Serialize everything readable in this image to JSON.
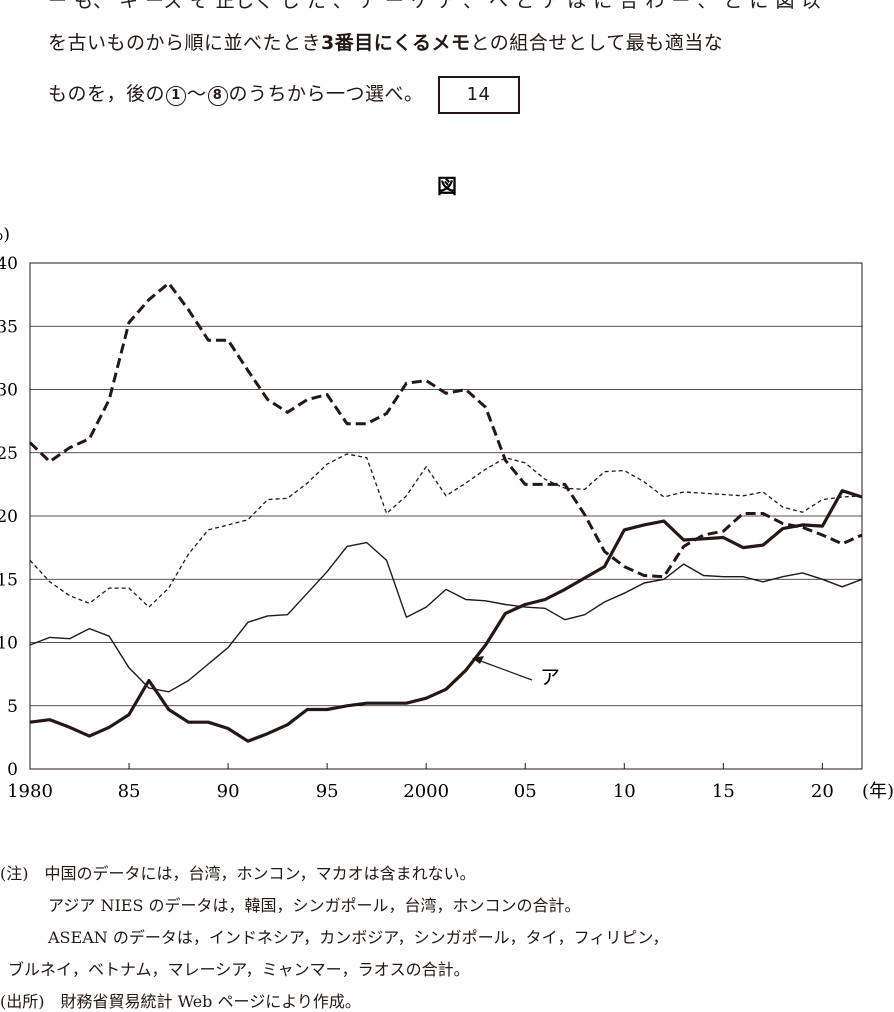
{
  "question": {
    "line0": "ー も、 キ ーズ そ 正しく し た 、 ア ー ケ ア 、 へ と ア は に 合 わ ー 、 と に 図 以",
    "line1_a": "を古いものから順に並べたとき",
    "line1_b": "3番目にくるメモ",
    "line1_c": "との組合せとして最も適当な",
    "line2_a": "ものを，後の",
    "choice_first": "1",
    "tilde": "～",
    "choice_last": "8",
    "line2_b": "のうちから一つ選べ。",
    "answer_no": "14"
  },
  "chart_data": {
    "type": "line",
    "title": "図",
    "ylabel": "(%)",
    "xlabel": "(年)",
    "ylim": [
      0,
      40
    ],
    "yticks": [
      0,
      5,
      10,
      15,
      20,
      25,
      30,
      35,
      40
    ],
    "ytick_labels": [
      "0",
      "5",
      "10",
      "15",
      "20",
      "25",
      "30",
      "35",
      "40"
    ],
    "xlim": [
      1980,
      2022
    ],
    "xticks": [
      1980,
      1985,
      1990,
      1995,
      2000,
      2005,
      2010,
      2015,
      2020
    ],
    "xtick_labels": [
      "1980",
      "85",
      "90",
      "95",
      "2000",
      "05",
      "10",
      "15",
      "20"
    ],
    "grid": "horizontal",
    "annotation": "ア",
    "x": [
      1980,
      1981,
      1982,
      1983,
      1984,
      1985,
      1986,
      1987,
      1988,
      1989,
      1990,
      1991,
      1992,
      1993,
      1994,
      1995,
      1996,
      1997,
      1998,
      1999,
      2000,
      2001,
      2002,
      2003,
      2004,
      2005,
      2006,
      2007,
      2008,
      2009,
      2010,
      2011,
      2012,
      2013,
      2014,
      2015,
      2016,
      2017,
      2018,
      2019,
      2020,
      2021,
      2022
    ],
    "series": [
      {
        "style": "thick-solid",
        "values": [
          3.7,
          3.9,
          3.3,
          2.6,
          3.3,
          4.3,
          7.0,
          4.7,
          3.7,
          3.7,
          3.2,
          2.2,
          2.8,
          3.5,
          4.7,
          4.7,
          5.0,
          5.2,
          5.2,
          5.2,
          5.6,
          6.3,
          7.8,
          9.8,
          12.3,
          13.0,
          13.4,
          14.2,
          15.1,
          16.0,
          18.9,
          19.3,
          19.6,
          18.1,
          18.2,
          18.3,
          17.5,
          17.7,
          19.0,
          19.3,
          19.2,
          22.0,
          21.5
        ]
      },
      {
        "style": "thick-dashed",
        "values": [
          25.8,
          24.3,
          25.4,
          26.1,
          29.2,
          35.3,
          37.1,
          38.4,
          36.3,
          33.9,
          33.9,
          31.5,
          29.2,
          28.2,
          29.2,
          29.6,
          27.3,
          27.3,
          28.1,
          30.5,
          30.7,
          29.7,
          30.0,
          28.6,
          24.4,
          22.5,
          22.5,
          22.5,
          20.1,
          17.2,
          16.0,
          15.3,
          15.2,
          17.6,
          18.5,
          18.8,
          20.2,
          20.2,
          19.4,
          19.1,
          18.5,
          17.8,
          18.5
        ]
      },
      {
        "style": "thin-dashed",
        "values": [
          16.5,
          14.8,
          13.7,
          13.1,
          14.3,
          14.3,
          12.8,
          14.3,
          17.0,
          18.9,
          19.3,
          19.7,
          21.3,
          21.4,
          22.6,
          24.1,
          24.9,
          24.6,
          20.2,
          21.6,
          23.9,
          21.6,
          22.6,
          23.7,
          24.6,
          24.2,
          22.9,
          22.2,
          22.1,
          23.5,
          23.6,
          22.7,
          21.5,
          21.9,
          21.8,
          21.7,
          21.6,
          21.9,
          20.7,
          20.3,
          21.3,
          21.5,
          21.6
        ]
      },
      {
        "style": "thin-solid",
        "values": [
          9.8,
          10.4,
          10.3,
          11.1,
          10.5,
          8.0,
          6.4,
          6.1,
          7.0,
          8.3,
          9.6,
          11.6,
          12.1,
          12.2,
          13.9,
          15.6,
          17.6,
          17.9,
          16.5,
          12.0,
          12.8,
          14.2,
          13.4,
          13.3,
          13.0,
          12.8,
          12.7,
          11.8,
          12.2,
          13.2,
          13.9,
          14.7,
          15.0,
          16.2,
          15.3,
          15.2,
          15.2,
          14.8,
          15.2,
          15.5,
          15.0,
          14.4,
          15.0
        ]
      }
    ]
  },
  "notes": {
    "n1": "(注)　中国のデータには，台湾，ホンコン，マカオは含まれない。",
    "n2": "アジア NIES のデータは，韓国，シンガポール，台湾，ホンコンの合計。",
    "n3": "ASEAN のデータは，インドネシア，カンボジア，シンガポール，タイ，フィリピン，",
    "n4": "ブルネイ，ベトナム，マレーシア，ミャンマー，ラオスの合計。",
    "n5": "(出所)　財務省貿易統計 Web ページにより作成。"
  }
}
